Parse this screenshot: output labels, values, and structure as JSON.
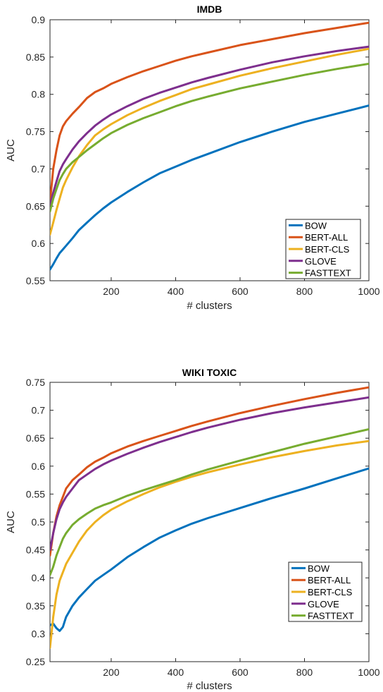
{
  "chart_data": [
    {
      "type": "line",
      "title": "IMDB",
      "xlabel": "# clusters",
      "ylabel": "AUC",
      "xlim": [
        10,
        1000
      ],
      "ylim": [
        0.55,
        0.9
      ],
      "xticks": [
        200,
        400,
        600,
        800,
        1000
      ],
      "yticks": [
        0.55,
        0.6,
        0.65,
        0.7,
        0.75,
        0.8,
        0.85,
        0.9
      ],
      "grid": false,
      "legend_position": "bottom-right",
      "x": [
        10,
        20,
        30,
        40,
        50,
        60,
        80,
        100,
        125,
        150,
        175,
        200,
        250,
        300,
        350,
        400,
        450,
        500,
        600,
        700,
        800,
        900,
        1000
      ],
      "series": [
        {
          "name": "BOW",
          "color": "#0072BD",
          "values": [
            0.565,
            0.572,
            0.58,
            0.587,
            0.592,
            0.597,
            0.607,
            0.618,
            0.628,
            0.638,
            0.647,
            0.655,
            0.669,
            0.682,
            0.694,
            0.703,
            0.712,
            0.72,
            0.736,
            0.75,
            0.763,
            0.774,
            0.785
          ]
        },
        {
          "name": "BERT-ALL",
          "color": "#D95319",
          "values": [
            0.655,
            0.7,
            0.725,
            0.745,
            0.757,
            0.764,
            0.774,
            0.783,
            0.795,
            0.803,
            0.808,
            0.814,
            0.823,
            0.831,
            0.838,
            0.845,
            0.851,
            0.856,
            0.866,
            0.874,
            0.882,
            0.889,
            0.896
          ]
        },
        {
          "name": "BERT-CLS",
          "color": "#EDB120",
          "values": [
            0.612,
            0.628,
            0.645,
            0.66,
            0.675,
            0.685,
            0.702,
            0.717,
            0.732,
            0.745,
            0.753,
            0.76,
            0.772,
            0.782,
            0.791,
            0.799,
            0.807,
            0.813,
            0.825,
            0.835,
            0.844,
            0.853,
            0.861
          ]
        },
        {
          "name": "GLOVE",
          "color": "#7E2F8E",
          "values": [
            0.652,
            0.668,
            0.683,
            0.697,
            0.706,
            0.713,
            0.726,
            0.737,
            0.748,
            0.758,
            0.766,
            0.773,
            0.784,
            0.794,
            0.802,
            0.809,
            0.816,
            0.822,
            0.833,
            0.843,
            0.851,
            0.858,
            0.864
          ]
        },
        {
          "name": "FASTTEXT",
          "color": "#77AC30",
          "values": [
            0.643,
            0.66,
            0.673,
            0.685,
            0.693,
            0.7,
            0.709,
            0.716,
            0.725,
            0.733,
            0.741,
            0.748,
            0.759,
            0.768,
            0.776,
            0.784,
            0.791,
            0.797,
            0.808,
            0.817,
            0.826,
            0.834,
            0.841
          ]
        }
      ]
    },
    {
      "type": "line",
      "title": "WIKI TOXIC",
      "xlabel": "# clusters",
      "ylabel": "AUC",
      "xlim": [
        10,
        1000
      ],
      "ylim": [
        0.25,
        0.75
      ],
      "xticks": [
        200,
        400,
        600,
        800,
        1000
      ],
      "yticks": [
        0.25,
        0.3,
        0.35,
        0.4,
        0.45,
        0.5,
        0.55,
        0.6,
        0.65,
        0.7,
        0.75
      ],
      "grid": false,
      "legend_position": "bottom-right",
      "x": [
        10,
        20,
        30,
        40,
        50,
        60,
        80,
        100,
        125,
        150,
        175,
        200,
        250,
        300,
        350,
        400,
        450,
        500,
        600,
        700,
        800,
        900,
        1000
      ],
      "series": [
        {
          "name": "BOW",
          "color": "#0072BD",
          "values": [
            0.315,
            0.318,
            0.31,
            0.305,
            0.312,
            0.33,
            0.35,
            0.365,
            0.38,
            0.395,
            0.405,
            0.415,
            0.437,
            0.455,
            0.472,
            0.485,
            0.497,
            0.507,
            0.525,
            0.543,
            0.56,
            0.578,
            0.596
          ]
        },
        {
          "name": "BERT-ALL",
          "color": "#D95319",
          "values": [
            0.44,
            0.48,
            0.51,
            0.53,
            0.545,
            0.56,
            0.575,
            0.585,
            0.598,
            0.608,
            0.615,
            0.623,
            0.635,
            0.645,
            0.654,
            0.663,
            0.672,
            0.68,
            0.695,
            0.708,
            0.72,
            0.731,
            0.741
          ]
        },
        {
          "name": "BERT-CLS",
          "color": "#EDB120",
          "values": [
            0.275,
            0.33,
            0.37,
            0.395,
            0.41,
            0.425,
            0.445,
            0.465,
            0.485,
            0.5,
            0.512,
            0.522,
            0.537,
            0.55,
            0.562,
            0.572,
            0.581,
            0.589,
            0.603,
            0.616,
            0.627,
            0.637,
            0.645
          ]
        },
        {
          "name": "GLOVE",
          "color": "#7E2F8E",
          "values": [
            0.45,
            0.48,
            0.505,
            0.523,
            0.535,
            0.545,
            0.56,
            0.575,
            0.585,
            0.595,
            0.603,
            0.61,
            0.622,
            0.633,
            0.643,
            0.652,
            0.661,
            0.669,
            0.683,
            0.695,
            0.705,
            0.714,
            0.723
          ]
        },
        {
          "name": "FASTTEXT",
          "color": "#77AC30",
          "values": [
            0.405,
            0.42,
            0.44,
            0.455,
            0.47,
            0.48,
            0.495,
            0.505,
            0.515,
            0.524,
            0.53,
            0.535,
            0.547,
            0.557,
            0.566,
            0.575,
            0.585,
            0.594,
            0.61,
            0.625,
            0.64,
            0.653,
            0.666
          ]
        }
      ]
    }
  ]
}
